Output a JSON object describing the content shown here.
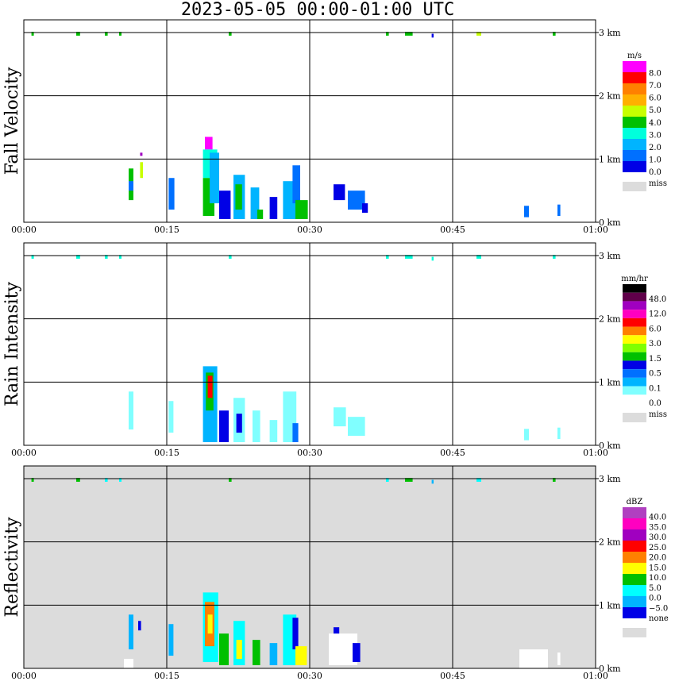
{
  "title": "2023-05-05   00:00-01:00 UTC",
  "chart_data": [
    {
      "type": "heatmap",
      "panel_label": "Fall Velocity",
      "x_ticks": [
        "00:00",
        "00:15",
        "00:30",
        "00:45",
        "01:00"
      ],
      "y_ticks": [
        "0 km",
        "1 km",
        "2 km",
        "3 km"
      ],
      "background": "#ffffff",
      "colorbar": {
        "unit": "m/s",
        "labels": [
          "8.0",
          "7.0",
          "6.0",
          "5.0",
          "4.0",
          "3.0",
          "2.0",
          "1.0",
          "0.0"
        ],
        "colors": [
          "#ff00ff",
          "#ff0000",
          "#ff8000",
          "#ffb000",
          "#c8ff00",
          "#00c000",
          "#00ffdc",
          "#00b4ff",
          "#0070ff",
          "#0000e6"
        ],
        "miss_label": "miss",
        "miss_color": "#dcdcdc"
      },
      "cells": [
        {
          "t": 12.2,
          "h": 1.05,
          "dt": 0.25,
          "dh": 0.05,
          "c": "#a000c0"
        },
        {
          "t": 12.2,
          "h": 0.7,
          "dt": 0.3,
          "dh": 0.25,
          "c": "#c8ff00"
        },
        {
          "t": 11.0,
          "h": 0.35,
          "dt": 0.5,
          "dh": 0.5,
          "c": "#00c000"
        },
        {
          "t": 11.0,
          "h": 0.5,
          "dt": 0.5,
          "dh": 0.15,
          "c": "#0070ff"
        },
        {
          "t": 15.2,
          "h": 0.2,
          "dt": 0.6,
          "dh": 0.5,
          "c": "#0070ff"
        },
        {
          "t": 19.0,
          "h": 1.15,
          "dt": 0.8,
          "dh": 0.2,
          "c": "#ff00ff"
        },
        {
          "t": 18.8,
          "h": 0.7,
          "dt": 1.5,
          "dh": 0.45,
          "c": "#00ffdc"
        },
        {
          "t": 18.8,
          "h": 0.1,
          "dt": 1.2,
          "dh": 0.6,
          "c": "#00c000"
        },
        {
          "t": 19.5,
          "h": 0.3,
          "dt": 1.0,
          "dh": 0.8,
          "c": "#00b4ff"
        },
        {
          "t": 20.5,
          "h": 0.05,
          "dt": 1.2,
          "dh": 0.45,
          "c": "#0000e6"
        },
        {
          "t": 22.0,
          "h": 0.05,
          "dt": 1.2,
          "dh": 0.7,
          "c": "#00b4ff"
        },
        {
          "t": 22.2,
          "h": 0.2,
          "dt": 0.7,
          "dh": 0.4,
          "c": "#00c000"
        },
        {
          "t": 23.8,
          "h": 0.05,
          "dt": 0.9,
          "dh": 0.5,
          "c": "#00b4ff"
        },
        {
          "t": 24.5,
          "h": 0.05,
          "dt": 0.6,
          "dh": 0.15,
          "c": "#00c000"
        },
        {
          "t": 25.8,
          "h": 0.05,
          "dt": 0.8,
          "dh": 0.35,
          "c": "#0000e6"
        },
        {
          "t": 27.2,
          "h": 0.05,
          "dt": 1.4,
          "dh": 0.6,
          "c": "#00b4ff"
        },
        {
          "t": 28.2,
          "h": 0.3,
          "dt": 0.8,
          "dh": 0.6,
          "c": "#0070ff"
        },
        {
          "t": 28.5,
          "h": 0.05,
          "dt": 1.3,
          "dh": 0.3,
          "c": "#00c000"
        },
        {
          "t": 32.5,
          "h": 0.35,
          "dt": 1.2,
          "dh": 0.25,
          "c": "#0000e6"
        },
        {
          "t": 34.0,
          "h": 0.2,
          "dt": 1.8,
          "dh": 0.3,
          "c": "#0070ff"
        },
        {
          "t": 35.5,
          "h": 0.15,
          "dt": 0.6,
          "dh": 0.15,
          "c": "#0000e6"
        },
        {
          "t": 52.5,
          "h": 0.08,
          "dt": 0.5,
          "dh": 0.18,
          "c": "#0070ff"
        },
        {
          "t": 56.0,
          "h": 0.1,
          "dt": 0.3,
          "dh": 0.18,
          "c": "#0070ff"
        },
        {
          "t": 0.8,
          "h": 2.95,
          "dt": 0.25,
          "dh": 0.06,
          "c": "#00c000"
        },
        {
          "t": 5.5,
          "h": 2.95,
          "dt": 0.4,
          "dh": 0.06,
          "c": "#00c000"
        },
        {
          "t": 8.5,
          "h": 2.95,
          "dt": 0.3,
          "dh": 0.06,
          "c": "#00c000"
        },
        {
          "t": 10.0,
          "h": 2.95,
          "dt": 0.25,
          "dh": 0.06,
          "c": "#00c000"
        },
        {
          "t": 21.5,
          "h": 2.95,
          "dt": 0.3,
          "dh": 0.06,
          "c": "#00c000"
        },
        {
          "t": 38.0,
          "h": 2.95,
          "dt": 0.3,
          "dh": 0.06,
          "c": "#00c000"
        },
        {
          "t": 40.0,
          "h": 2.95,
          "dt": 0.8,
          "dh": 0.06,
          "c": "#00c000"
        },
        {
          "t": 42.8,
          "h": 2.92,
          "dt": 0.2,
          "dh": 0.06,
          "c": "#0000e6"
        },
        {
          "t": 47.5,
          "h": 2.95,
          "dt": 0.5,
          "dh": 0.06,
          "c": "#c8ff00"
        },
        {
          "t": 55.5,
          "h": 2.95,
          "dt": 0.3,
          "dh": 0.06,
          "c": "#00c000"
        }
      ]
    },
    {
      "type": "heatmap",
      "panel_label": "Rain Intensity",
      "x_ticks": [
        "00:00",
        "00:15",
        "00:30",
        "00:45",
        "01:00"
      ],
      "y_ticks": [
        "0 km",
        "1 km",
        "2 km",
        "3 km"
      ],
      "background": "#ffffff",
      "colorbar": {
        "unit": "mm/hr",
        "labels": [
          "48.0",
          "12.0",
          "6.0",
          "3.0",
          "1.5",
          "0.5",
          "0.1",
          "0.0"
        ],
        "colors": [
          "#000000",
          "#60004a",
          "#a000c0",
          "#ff00c0",
          "#ff0000",
          "#ff8000",
          "#ffff00",
          "#80ff00",
          "#00c000",
          "#0000e6",
          "#0070ff",
          "#00b4ff",
          "#80ffff",
          "#ffffff"
        ],
        "miss_label": "miss",
        "miss_color": "#dcdcdc"
      },
      "cells": [
        {
          "t": 11.0,
          "h": 0.25,
          "dt": 0.5,
          "dh": 0.6,
          "c": "#80ffff"
        },
        {
          "t": 15.2,
          "h": 0.2,
          "dt": 0.5,
          "dh": 0.5,
          "c": "#80ffff"
        },
        {
          "t": 18.8,
          "h": 0.05,
          "dt": 1.5,
          "dh": 1.2,
          "c": "#00b4ff"
        },
        {
          "t": 19.1,
          "h": 0.55,
          "dt": 0.8,
          "dh": 0.6,
          "c": "#00c000"
        },
        {
          "t": 19.3,
          "h": 0.75,
          "dt": 0.5,
          "dh": 0.35,
          "c": "#ff0000"
        },
        {
          "t": 20.5,
          "h": 0.05,
          "dt": 1.0,
          "dh": 0.5,
          "c": "#0000e6"
        },
        {
          "t": 22.0,
          "h": 0.05,
          "dt": 1.2,
          "dh": 0.7,
          "c": "#80ffff"
        },
        {
          "t": 22.3,
          "h": 0.2,
          "dt": 0.6,
          "dh": 0.3,
          "c": "#0000e6"
        },
        {
          "t": 24.0,
          "h": 0.05,
          "dt": 0.8,
          "dh": 0.5,
          "c": "#80ffff"
        },
        {
          "t": 25.8,
          "h": 0.05,
          "dt": 0.8,
          "dh": 0.35,
          "c": "#80ffff"
        },
        {
          "t": 27.2,
          "h": 0.05,
          "dt": 1.4,
          "dh": 0.8,
          "c": "#80ffff"
        },
        {
          "t": 28.2,
          "h": 0.05,
          "dt": 0.6,
          "dh": 0.3,
          "c": "#0070ff"
        },
        {
          "t": 32.5,
          "h": 0.3,
          "dt": 1.3,
          "dh": 0.3,
          "c": "#80ffff"
        },
        {
          "t": 34.0,
          "h": 0.15,
          "dt": 1.8,
          "dh": 0.3,
          "c": "#80ffff"
        },
        {
          "t": 52.5,
          "h": 0.08,
          "dt": 0.5,
          "dh": 0.18,
          "c": "#80ffff"
        },
        {
          "t": 56.0,
          "h": 0.1,
          "dt": 0.3,
          "dh": 0.18,
          "c": "#80ffff"
        },
        {
          "t": 0.8,
          "h": 2.95,
          "dt": 0.25,
          "dh": 0.06,
          "c": "#00ffdc"
        },
        {
          "t": 5.5,
          "h": 2.95,
          "dt": 0.4,
          "dh": 0.06,
          "c": "#00ffdc"
        },
        {
          "t": 8.5,
          "h": 2.95,
          "dt": 0.3,
          "dh": 0.06,
          "c": "#00ffdc"
        },
        {
          "t": 10.0,
          "h": 2.95,
          "dt": 0.25,
          "dh": 0.06,
          "c": "#00ffdc"
        },
        {
          "t": 21.5,
          "h": 2.95,
          "dt": 0.3,
          "dh": 0.06,
          "c": "#00ffdc"
        },
        {
          "t": 38.0,
          "h": 2.95,
          "dt": 0.3,
          "dh": 0.06,
          "c": "#00ffdc"
        },
        {
          "t": 40.0,
          "h": 2.95,
          "dt": 0.8,
          "dh": 0.06,
          "c": "#00ffdc"
        },
        {
          "t": 42.8,
          "h": 2.92,
          "dt": 0.2,
          "dh": 0.06,
          "c": "#00ffdc"
        },
        {
          "t": 47.5,
          "h": 2.95,
          "dt": 0.5,
          "dh": 0.06,
          "c": "#00ffdc"
        },
        {
          "t": 55.5,
          "h": 2.95,
          "dt": 0.3,
          "dh": 0.06,
          "c": "#00ffdc"
        }
      ]
    },
    {
      "type": "heatmap",
      "panel_label": "Reflectivity",
      "x_ticks": [
        "00:00",
        "00:15",
        "00:30",
        "00:45",
        "01:00"
      ],
      "y_ticks": [
        "0 km",
        "1 km",
        "2 km",
        "3 km"
      ],
      "background": "#dcdcdc",
      "colorbar": {
        "unit": "dBZ",
        "labels": [
          "40.0",
          "35.0",
          "30.0",
          "25.0",
          "20.0",
          "15.0",
          "10.0",
          "5.0",
          "0.0",
          "−5.0",
          "none"
        ],
        "colors": [
          "#b040c0",
          "#ff00c0",
          "#a000c0",
          "#ff0000",
          "#ff8000",
          "#ffff00",
          "#00c000",
          "#00ffff",
          "#00b4ff",
          "#0000e6"
        ],
        "miss_label": "none",
        "miss_color": "#dcdcdc"
      },
      "cells": [
        {
          "t": 11.0,
          "h": 0.3,
          "dt": 0.5,
          "dh": 0.55,
          "c": "#00b4ff"
        },
        {
          "t": 12.0,
          "h": 0.6,
          "dt": 0.3,
          "dh": 0.15,
          "c": "#0000e6"
        },
        {
          "t": 10.5,
          "h": 0.0,
          "dt": 1.0,
          "dh": 0.15,
          "c": "#ffffff"
        },
        {
          "t": 15.2,
          "h": 0.2,
          "dt": 0.5,
          "dh": 0.5,
          "c": "#00b4ff"
        },
        {
          "t": 18.8,
          "h": 0.1,
          "dt": 1.6,
          "dh": 1.1,
          "c": "#00ffff"
        },
        {
          "t": 19.0,
          "h": 0.35,
          "dt": 1.0,
          "dh": 0.7,
          "c": "#ff8000"
        },
        {
          "t": 19.3,
          "h": 0.55,
          "dt": 0.5,
          "dh": 0.3,
          "c": "#ffff00"
        },
        {
          "t": 20.5,
          "h": 0.05,
          "dt": 1.0,
          "dh": 0.5,
          "c": "#00c000"
        },
        {
          "t": 22.0,
          "h": 0.05,
          "dt": 1.2,
          "dh": 0.7,
          "c": "#00ffff"
        },
        {
          "t": 22.3,
          "h": 0.15,
          "dt": 0.6,
          "dh": 0.3,
          "c": "#ffff00"
        },
        {
          "t": 24.0,
          "h": 0.05,
          "dt": 0.8,
          "dh": 0.4,
          "c": "#00c000"
        },
        {
          "t": 25.8,
          "h": 0.05,
          "dt": 0.8,
          "dh": 0.35,
          "c": "#00b4ff"
        },
        {
          "t": 27.2,
          "h": 0.05,
          "dt": 1.4,
          "dh": 0.8,
          "c": "#00ffff"
        },
        {
          "t": 28.2,
          "h": 0.3,
          "dt": 0.6,
          "dh": 0.5,
          "c": "#0000e6"
        },
        {
          "t": 28.5,
          "h": 0.05,
          "dt": 1.2,
          "dh": 0.3,
          "c": "#ffff00"
        },
        {
          "t": 32.5,
          "h": 0.5,
          "dt": 0.6,
          "dh": 0.15,
          "c": "#0000e6"
        },
        {
          "t": 32.0,
          "h": 0.05,
          "dt": 3.0,
          "dh": 0.5,
          "c": "#ffffff"
        },
        {
          "t": 34.5,
          "h": 0.1,
          "dt": 0.8,
          "dh": 0.3,
          "c": "#0000e6"
        },
        {
          "t": 52.0,
          "h": 0.0,
          "dt": 3.0,
          "dh": 0.3,
          "c": "#ffffff"
        },
        {
          "t": 56.0,
          "h": 0.05,
          "dt": 0.3,
          "dh": 0.2,
          "c": "#ffffff"
        },
        {
          "t": 0.8,
          "h": 2.95,
          "dt": 0.25,
          "dh": 0.06,
          "c": "#00c000"
        },
        {
          "t": 5.5,
          "h": 2.95,
          "dt": 0.4,
          "dh": 0.06,
          "c": "#00c000"
        },
        {
          "t": 8.5,
          "h": 2.95,
          "dt": 0.3,
          "dh": 0.06,
          "c": "#00ffff"
        },
        {
          "t": 10.0,
          "h": 2.95,
          "dt": 0.25,
          "dh": 0.06,
          "c": "#00ffff"
        },
        {
          "t": 21.5,
          "h": 2.95,
          "dt": 0.3,
          "dh": 0.06,
          "c": "#00c000"
        },
        {
          "t": 38.0,
          "h": 2.95,
          "dt": 0.3,
          "dh": 0.06,
          "c": "#00ffff"
        },
        {
          "t": 40.0,
          "h": 2.95,
          "dt": 0.8,
          "dh": 0.06,
          "c": "#00c000"
        },
        {
          "t": 42.8,
          "h": 2.92,
          "dt": 0.2,
          "dh": 0.06,
          "c": "#00b4ff"
        },
        {
          "t": 47.5,
          "h": 2.95,
          "dt": 0.5,
          "dh": 0.06,
          "c": "#00ffff"
        },
        {
          "t": 55.5,
          "h": 2.95,
          "dt": 0.3,
          "dh": 0.06,
          "c": "#00c000"
        }
      ]
    }
  ]
}
